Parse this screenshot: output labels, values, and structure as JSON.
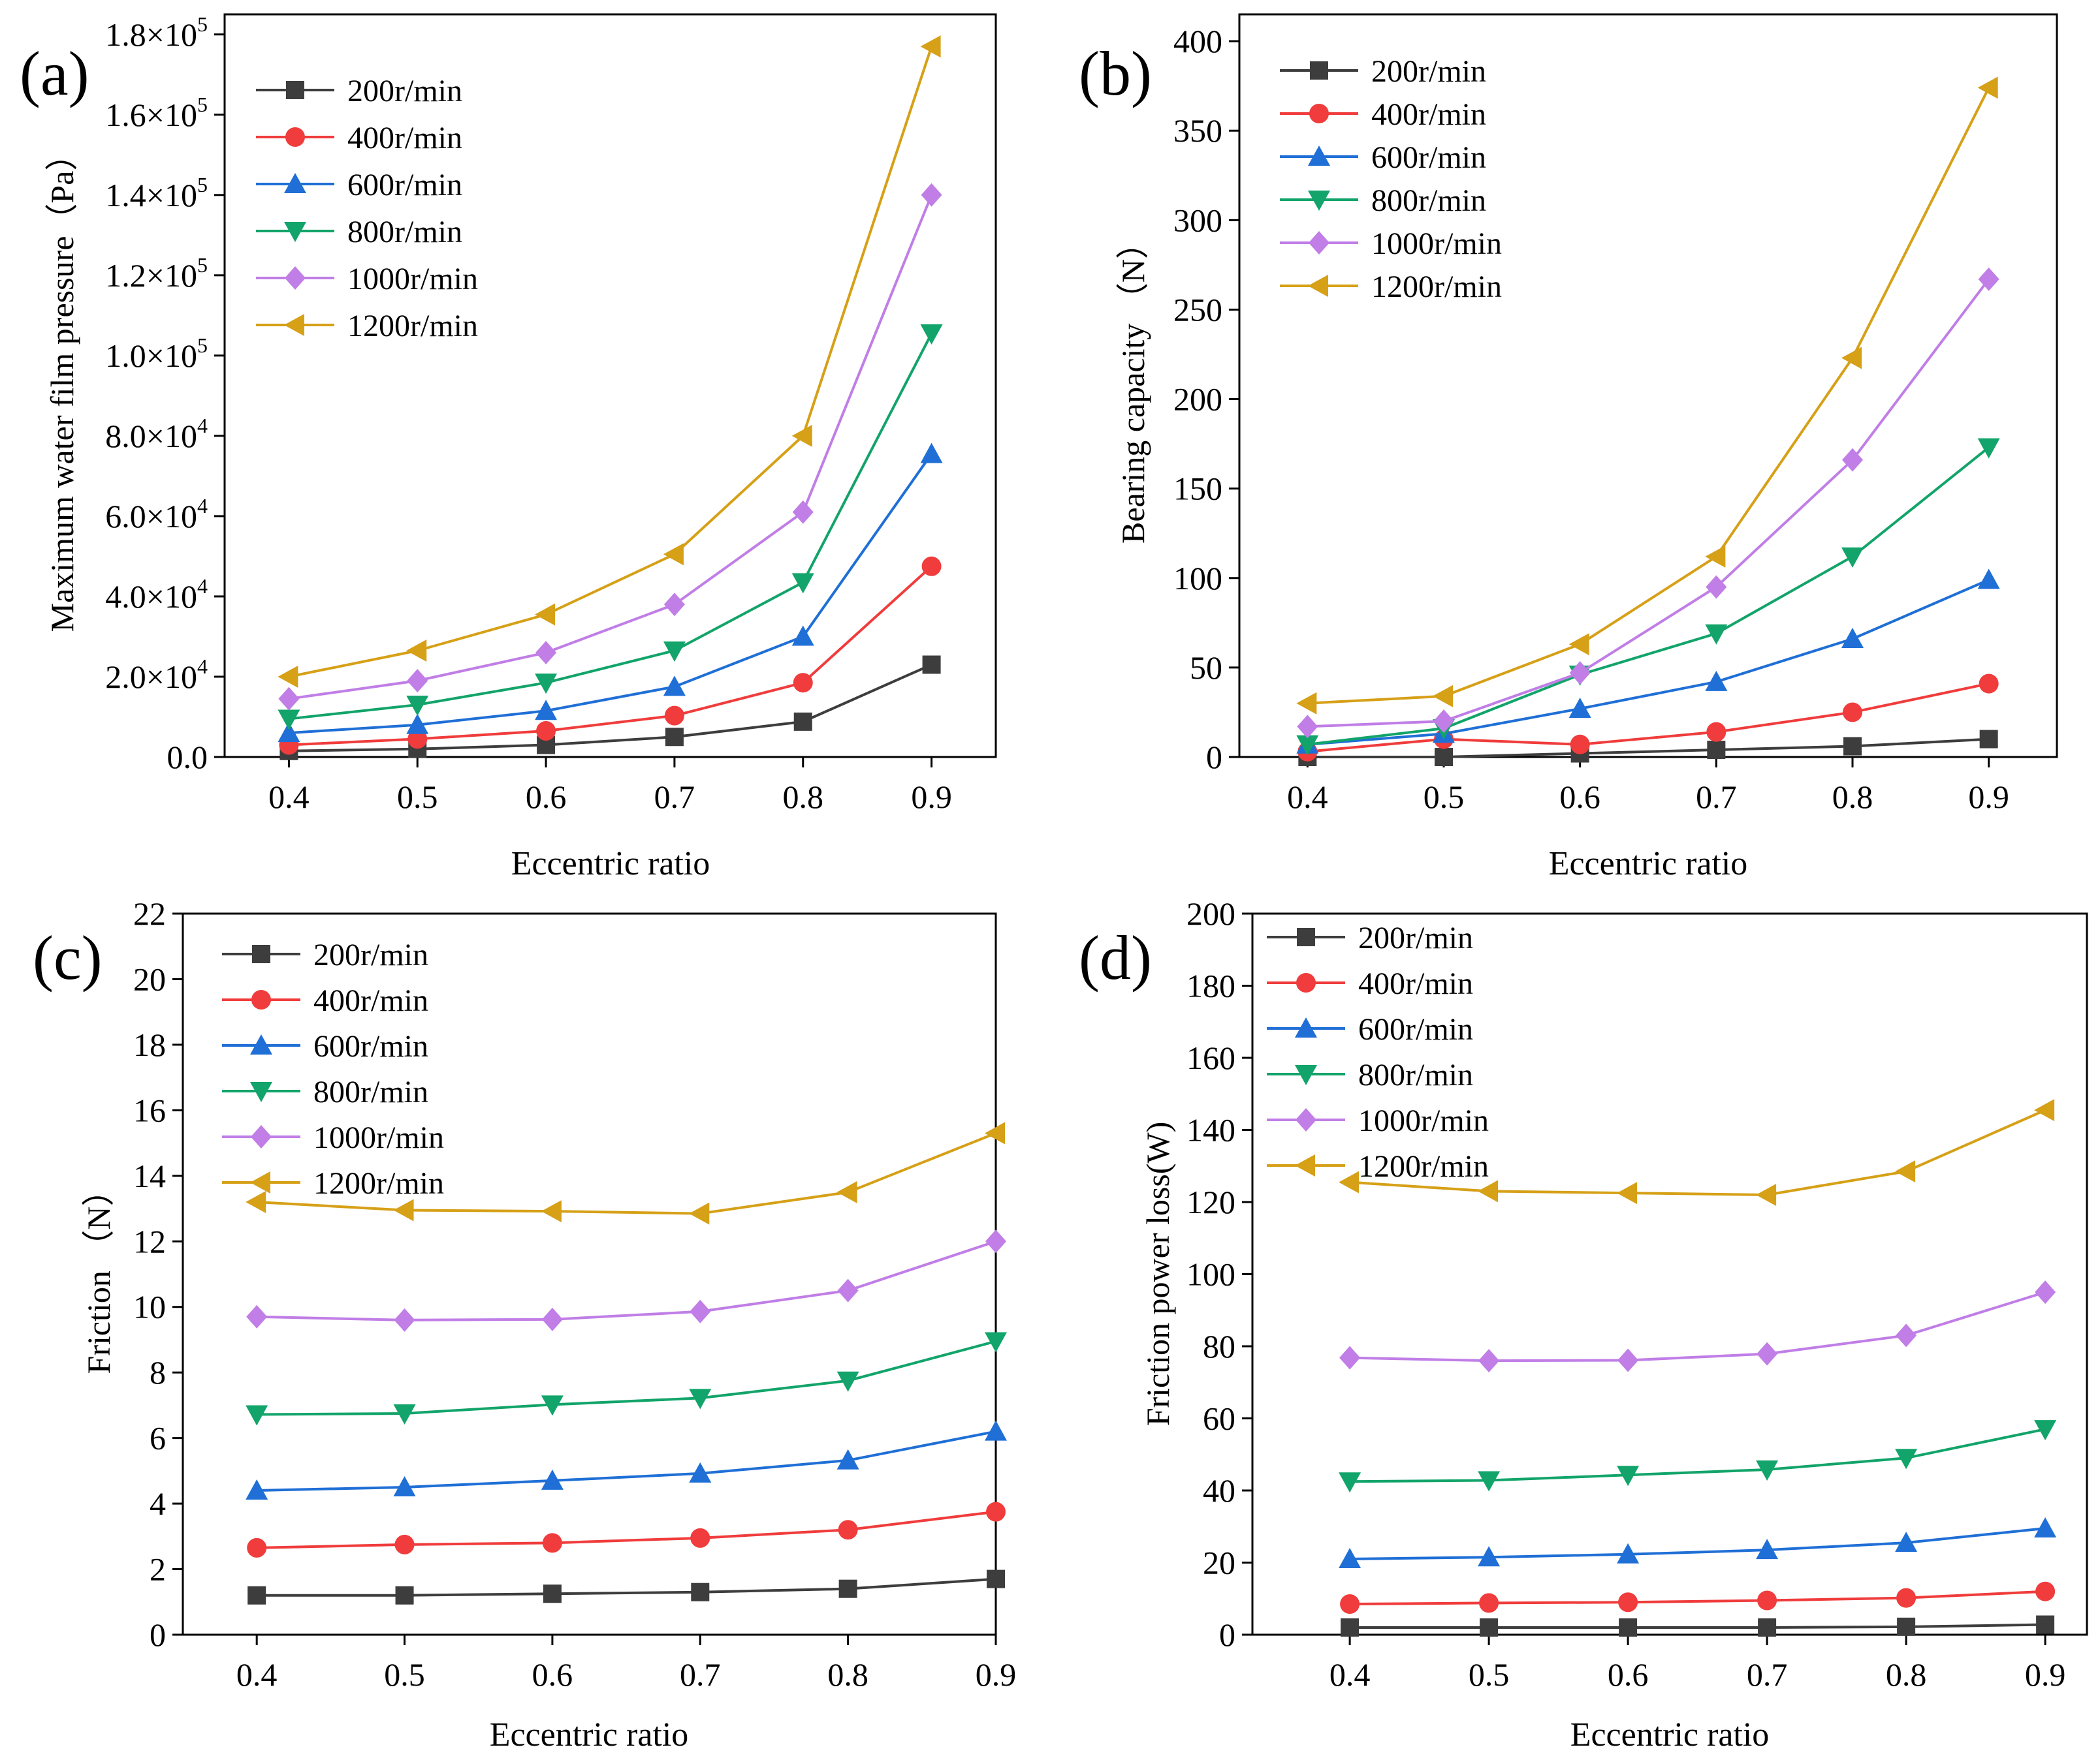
{
  "colors": {
    "200r/min": "#3d3d3d",
    "400r/min": "#f03c3c",
    "600r/min": "#1f6fd6",
    "800r/min": "#12a46a",
    "1000r/min": "#c07ee6",
    "1200r/min": "#d6a017"
  },
  "chart_data": [
    {
      "panel": "(a)",
      "type": "line",
      "xlabel": "Eccentric ratio",
      "ylabel": "Maximum water film pressure（Pa）",
      "x": [
        0.4,
        0.5,
        0.6,
        0.7,
        0.8,
        0.9
      ],
      "xticks": [
        "0.4",
        "0.5",
        "0.6",
        "0.7",
        "0.8",
        "0.9"
      ],
      "xlim": [
        0.35,
        0.95
      ],
      "ylim": [
        0,
        185000
      ],
      "yticks": [
        {
          "value": 0,
          "mant": "0.0",
          "exp": ""
        },
        {
          "value": 20000,
          "mant": "2.0×10",
          "exp": "4"
        },
        {
          "value": 40000,
          "mant": "4.0×10",
          "exp": "4"
        },
        {
          "value": 60000,
          "mant": "6.0×10",
          "exp": "4"
        },
        {
          "value": 80000,
          "mant": "8.0×10",
          "exp": "4"
        },
        {
          "value": 100000,
          "mant": "1.0×10",
          "exp": "5"
        },
        {
          "value": 120000,
          "mant": "1.2×10",
          "exp": "5"
        },
        {
          "value": 140000,
          "mant": "1.4×10",
          "exp": "5"
        },
        {
          "value": 160000,
          "mant": "1.6×10",
          "exp": "5"
        },
        {
          "value": 180000,
          "mant": "1.8×10",
          "exp": "5"
        }
      ],
      "legend": "top-left",
      "series": [
        {
          "name": "200r/min",
          "marker": "square",
          "values": [
            1500,
            2000,
            3000,
            5000,
            8800,
            23000
          ]
        },
        {
          "name": "400r/min",
          "marker": "circle",
          "values": [
            3000,
            4500,
            6500,
            10300,
            18500,
            47500
          ]
        },
        {
          "name": "600r/min",
          "marker": "triangle-up",
          "values": [
            6000,
            8000,
            11500,
            17500,
            30000,
            75500
          ]
        },
        {
          "name": "800r/min",
          "marker": "triangle-down",
          "values": [
            9500,
            13000,
            18500,
            26500,
            43500,
            105500
          ]
        },
        {
          "name": "1000r/min",
          "marker": "diamond",
          "values": [
            14500,
            19000,
            26000,
            38000,
            61000,
            140000
          ]
        },
        {
          "name": "1200r/min",
          "marker": "triangle-left",
          "values": [
            20000,
            26500,
            35500,
            50500,
            80000,
            177000
          ]
        }
      ]
    },
    {
      "panel": "(b)",
      "type": "line",
      "xlabel": "Eccentric ratio",
      "ylabel": "Bearing capacity （N）",
      "x": [
        0.4,
        0.5,
        0.6,
        0.7,
        0.8,
        0.9
      ],
      "xticks": [
        "0.4",
        "0.5",
        "0.6",
        "0.7",
        "0.8",
        "0.9"
      ],
      "xlim": [
        0.35,
        0.95
      ],
      "ylim": [
        0,
        415
      ],
      "yticks": [
        {
          "value": 0,
          "mant": "0",
          "exp": ""
        },
        {
          "value": 50,
          "mant": "50",
          "exp": ""
        },
        {
          "value": 100,
          "mant": "100",
          "exp": ""
        },
        {
          "value": 150,
          "mant": "150",
          "exp": ""
        },
        {
          "value": 200,
          "mant": "200",
          "exp": ""
        },
        {
          "value": 250,
          "mant": "250",
          "exp": ""
        },
        {
          "value": 300,
          "mant": "300",
          "exp": ""
        },
        {
          "value": 350,
          "mant": "350",
          "exp": ""
        },
        {
          "value": 400,
          "mant": "400",
          "exp": ""
        }
      ],
      "legend": "top-left",
      "series": [
        {
          "name": "200r/min",
          "marker": "square",
          "values": [
            0,
            0,
            2,
            4,
            6,
            10
          ]
        },
        {
          "name": "400r/min",
          "marker": "circle",
          "values": [
            3,
            10,
            7,
            14,
            25,
            41
          ]
        },
        {
          "name": "600r/min",
          "marker": "triangle-up",
          "values": [
            7,
            13,
            27,
            42,
            66,
            99
          ]
        },
        {
          "name": "800r/min",
          "marker": "triangle-down",
          "values": [
            7,
            16,
            46,
            69,
            112,
            173
          ]
        },
        {
          "name": "1000r/min",
          "marker": "diamond",
          "values": [
            17,
            20,
            47,
            95,
            166,
            267
          ]
        },
        {
          "name": "1200r/min",
          "marker": "triangle-left",
          "values": [
            30,
            34,
            63,
            112,
            223,
            374
          ]
        }
      ]
    },
    {
      "panel": "(c)",
      "type": "line",
      "xlabel": "Eccentric ratio",
      "ylabel": "Friction （N）",
      "x": [
        0.4,
        0.5,
        0.6,
        0.7,
        0.8,
        0.9
      ],
      "xticks": [
        "0.4",
        "0.5",
        "0.6",
        "0.7",
        "0.8",
        "0.9"
      ],
      "xlim": [
        0.35,
        0.9
      ],
      "ylim": [
        0,
        22
      ],
      "yticks": [
        {
          "value": 0,
          "mant": "0",
          "exp": ""
        },
        {
          "value": 2,
          "mant": "2",
          "exp": ""
        },
        {
          "value": 4,
          "mant": "4",
          "exp": ""
        },
        {
          "value": 6,
          "mant": "6",
          "exp": ""
        },
        {
          "value": 8,
          "mant": "8",
          "exp": ""
        },
        {
          "value": 10,
          "mant": "10",
          "exp": ""
        },
        {
          "value": 12,
          "mant": "12",
          "exp": ""
        },
        {
          "value": 14,
          "mant": "14",
          "exp": ""
        },
        {
          "value": 16,
          "mant": "16",
          "exp": ""
        },
        {
          "value": 18,
          "mant": "18",
          "exp": ""
        },
        {
          "value": 20,
          "mant": "20",
          "exp": ""
        },
        {
          "value": 22,
          "mant": "22",
          "exp": ""
        }
      ],
      "legend": "top-left",
      "series": [
        {
          "name": "200r/min",
          "marker": "square",
          "values": [
            1.2,
            1.2,
            1.25,
            1.3,
            1.4,
            1.7
          ]
        },
        {
          "name": "400r/min",
          "marker": "circle",
          "values": [
            2.65,
            2.75,
            2.8,
            2.95,
            3.2,
            3.75
          ]
        },
        {
          "name": "600r/min",
          "marker": "triangle-up",
          "values": [
            4.4,
            4.5,
            4.7,
            4.92,
            5.32,
            6.2
          ]
        },
        {
          "name": "800r/min",
          "marker": "triangle-down",
          "values": [
            6.72,
            6.75,
            7.02,
            7.22,
            7.75,
            8.95
          ]
        },
        {
          "name": "1000r/min",
          "marker": "diamond",
          "values": [
            9.7,
            9.6,
            9.62,
            9.86,
            10.5,
            12.0
          ]
        },
        {
          "name": "1200r/min",
          "marker": "triangle-left",
          "values": [
            13.2,
            12.95,
            12.92,
            12.85,
            13.5,
            15.3
          ]
        }
      ]
    },
    {
      "panel": "(d)",
      "type": "line",
      "xlabel": "Eccentric ratio",
      "ylabel": "Friction power loss(W)",
      "x": [
        0.4,
        0.5,
        0.6,
        0.7,
        0.8,
        0.9
      ],
      "xticks": [
        "0.4",
        "0.5",
        "0.6",
        "0.7",
        "0.8",
        "0.9"
      ],
      "xlim": [
        0.33,
        0.93
      ],
      "ylim": [
        0,
        200
      ],
      "yticks": [
        {
          "value": 0,
          "mant": "0",
          "exp": ""
        },
        {
          "value": 20,
          "mant": "20",
          "exp": ""
        },
        {
          "value": 40,
          "mant": "40",
          "exp": ""
        },
        {
          "value": 60,
          "mant": "60",
          "exp": ""
        },
        {
          "value": 80,
          "mant": "80",
          "exp": ""
        },
        {
          "value": 100,
          "mant": "100",
          "exp": ""
        },
        {
          "value": 120,
          "mant": "120",
          "exp": ""
        },
        {
          "value": 140,
          "mant": "140",
          "exp": ""
        },
        {
          "value": 160,
          "mant": "160",
          "exp": ""
        },
        {
          "value": 180,
          "mant": "180",
          "exp": ""
        },
        {
          "value": 200,
          "mant": "200",
          "exp": ""
        }
      ],
      "legend": "top-left",
      "series": [
        {
          "name": "200r/min",
          "marker": "square",
          "values": [
            2,
            2,
            2,
            2,
            2.2,
            2.8
          ]
        },
        {
          "name": "400r/min",
          "marker": "circle",
          "values": [
            8.5,
            8.8,
            9,
            9.5,
            10.2,
            12
          ]
        },
        {
          "name": "600r/min",
          "marker": "triangle-up",
          "values": [
            21,
            21.5,
            22.3,
            23.5,
            25.5,
            29.5
          ]
        },
        {
          "name": "800r/min",
          "marker": "triangle-down",
          "values": [
            42.5,
            42.8,
            44.3,
            45.8,
            49,
            57
          ]
        },
        {
          "name": "1000r/min",
          "marker": "diamond",
          "values": [
            76.8,
            76,
            76.1,
            77.9,
            83,
            95
          ]
        },
        {
          "name": "1200r/min",
          "marker": "triangle-left",
          "values": [
            125.5,
            123,
            122.5,
            122,
            128.5,
            145.5
          ]
        }
      ]
    }
  ]
}
